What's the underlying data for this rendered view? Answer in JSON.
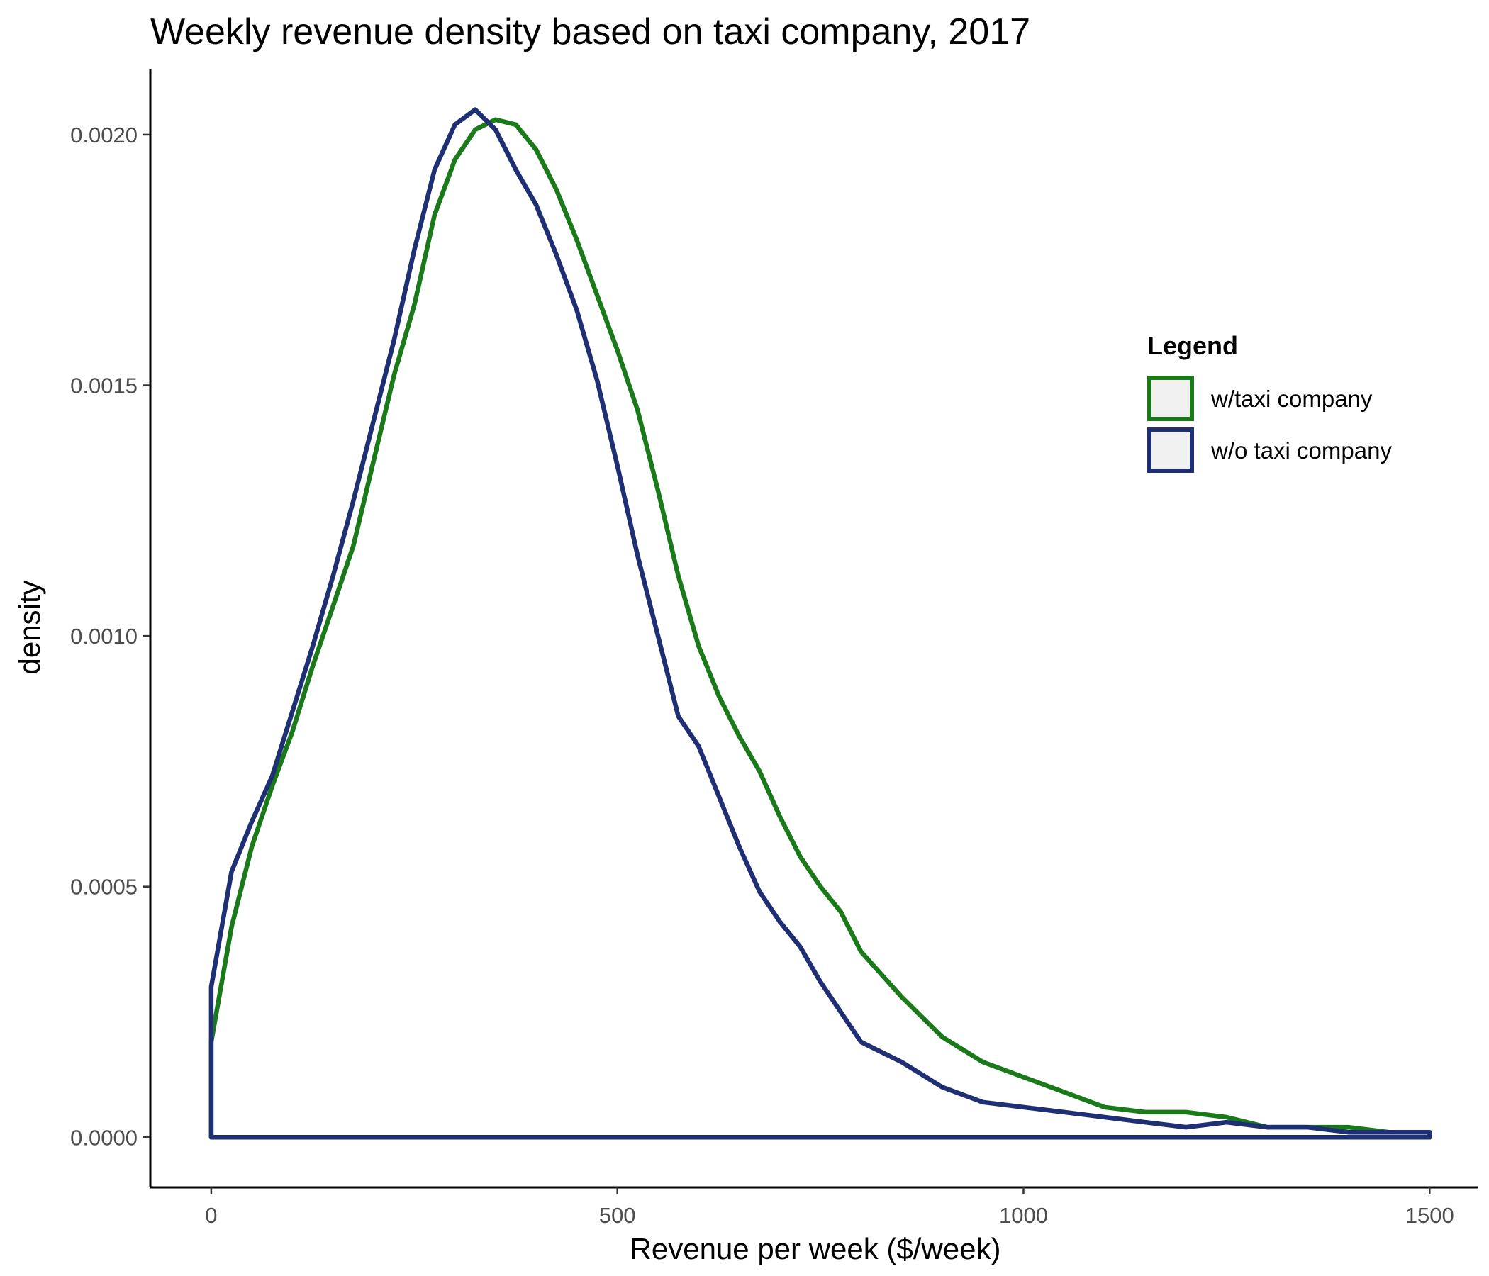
{
  "chart_data": {
    "type": "area",
    "title": "Weekly revenue density based on taxi company, 2017",
    "xlabel": "Revenue per week ($/week)",
    "ylabel": "density",
    "xlim": [
      -75,
      1560
    ],
    "ylim": [
      -0.0001,
      0.00213
    ],
    "x_ticks": [
      0,
      500,
      1000,
      1500
    ],
    "x_tick_labels": [
      "0",
      "500",
      "1000",
      "1500"
    ],
    "y_ticks": [
      0,
      0.0005,
      0.001,
      0.0015,
      0.002
    ],
    "y_tick_labels": [
      "0.0000",
      "0.0005",
      "0.0010",
      "0.0015",
      "0.0020"
    ],
    "grid": false,
    "legend": {
      "title": "Legend",
      "position": "right",
      "fill": "#f0f0f0"
    },
    "series": [
      {
        "name": "w/taxi company",
        "color": "#1a7a1a",
        "x": [
          0,
          25,
          50,
          75,
          100,
          125,
          150,
          175,
          200,
          225,
          250,
          275,
          300,
          325,
          350,
          375,
          400,
          425,
          450,
          475,
          500,
          525,
          550,
          575,
          600,
          625,
          650,
          675,
          700,
          725,
          750,
          775,
          800,
          850,
          900,
          950,
          1000,
          1050,
          1100,
          1150,
          1200,
          1250,
          1300,
          1350,
          1400,
          1450,
          1500
        ],
        "y": [
          0.00019,
          0.00042,
          0.00058,
          0.0007,
          0.00081,
          0.00094,
          0.00106,
          0.00118,
          0.00135,
          0.00152,
          0.00166,
          0.00184,
          0.00195,
          0.00201,
          0.00203,
          0.00202,
          0.00197,
          0.00189,
          0.00179,
          0.00168,
          0.00157,
          0.00145,
          0.00129,
          0.00112,
          0.00098,
          0.00088,
          0.0008,
          0.00073,
          0.00064,
          0.00056,
          0.0005,
          0.00045,
          0.00037,
          0.00028,
          0.0002,
          0.00015,
          0.00012,
          9e-05,
          6e-05,
          5e-05,
          5e-05,
          4e-05,
          2e-05,
          2e-05,
          2e-05,
          1e-05,
          1e-05
        ]
      },
      {
        "name": "w/o taxi company",
        "color": "#1f2f73",
        "x": [
          0,
          25,
          50,
          75,
          100,
          125,
          150,
          175,
          200,
          225,
          250,
          275,
          300,
          325,
          350,
          375,
          400,
          425,
          450,
          475,
          500,
          525,
          550,
          575,
          600,
          625,
          650,
          675,
          700,
          725,
          750,
          775,
          800,
          850,
          900,
          950,
          1000,
          1050,
          1100,
          1150,
          1200,
          1250,
          1300,
          1350,
          1400,
          1450,
          1500
        ],
        "y": [
          0.0003,
          0.00053,
          0.00063,
          0.00072,
          0.00085,
          0.00098,
          0.00112,
          0.00127,
          0.00143,
          0.00159,
          0.00177,
          0.00193,
          0.00202,
          0.00205,
          0.00201,
          0.00193,
          0.00186,
          0.00176,
          0.00165,
          0.00151,
          0.00134,
          0.00116,
          0.001,
          0.00084,
          0.00078,
          0.00068,
          0.00058,
          0.00049,
          0.00043,
          0.00038,
          0.00031,
          0.00025,
          0.00019,
          0.00015,
          0.0001,
          7e-05,
          6e-05,
          5e-05,
          4e-05,
          3e-05,
          2e-05,
          3e-05,
          2e-05,
          2e-05,
          1e-05,
          1e-05,
          1e-05
        ]
      }
    ]
  }
}
